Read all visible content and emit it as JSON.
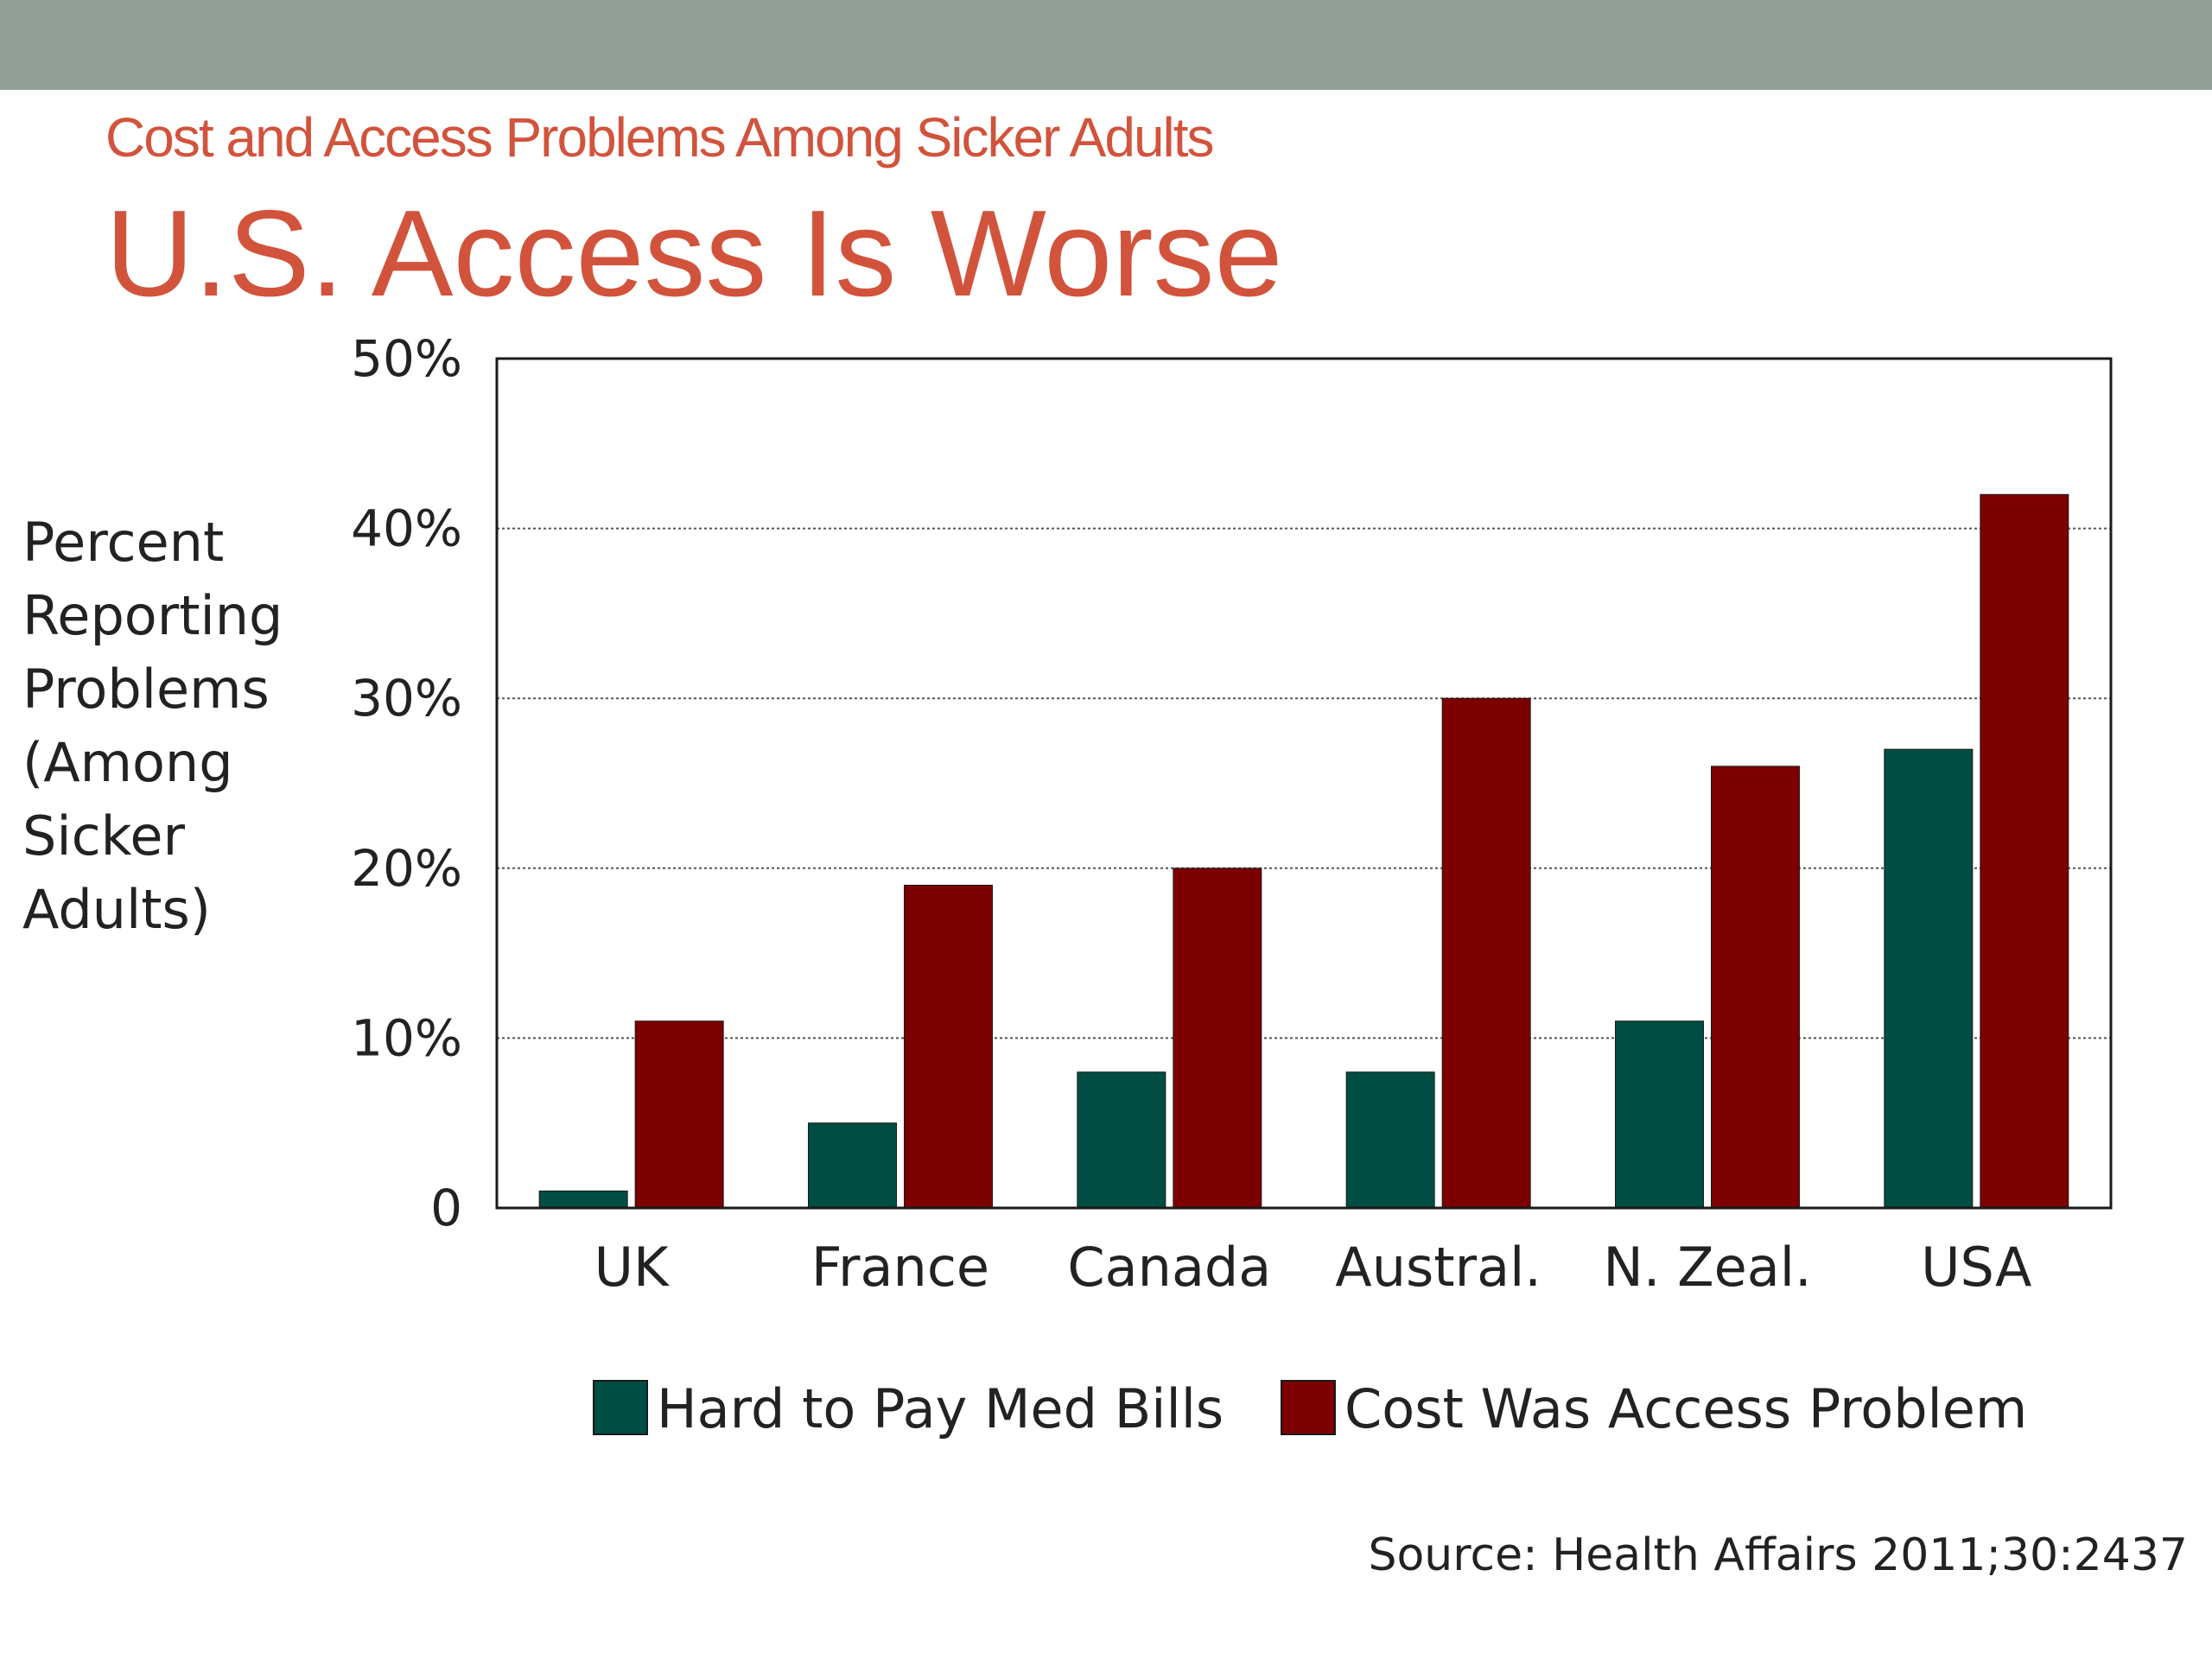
{
  "slide": {
    "subtitle": "Cost and Access Problems Among Sicker Adults",
    "title": "U.S. Access Is Worse",
    "ylabel": "Percent\nReporting\nProblems\n(Among\nSicker\nAdults)",
    "source": "Source: Health Affairs 2011;30:2437"
  },
  "colors": {
    "band": "#919f97",
    "heading": "#d2533c",
    "series1": "#004d43",
    "series2": "#7d0000"
  },
  "chart_data": {
    "type": "bar",
    "title": "U.S. Access Is Worse",
    "xlabel": "",
    "ylabel": "Percent Reporting Problems (Among Sicker Adults)",
    "categories": [
      "UK",
      "France",
      "Canada",
      "Austral.",
      "N. Zeal.",
      "USA"
    ],
    "series": [
      {
        "name": "Hard to Pay Med Bills",
        "values": [
          1,
          5,
          8,
          8,
          11,
          27
        ]
      },
      {
        "name": "Cost Was Access Problem",
        "values": [
          11,
          19,
          20,
          30,
          26,
          42
        ]
      }
    ],
    "ylim": [
      0,
      50
    ],
    "yticks": [
      0,
      10,
      20,
      30,
      40,
      50
    ],
    "ytick_labels": [
      "0",
      "10%",
      "20%",
      "30%",
      "40%",
      "50%"
    ],
    "grid": true,
    "legend": "bottom"
  }
}
